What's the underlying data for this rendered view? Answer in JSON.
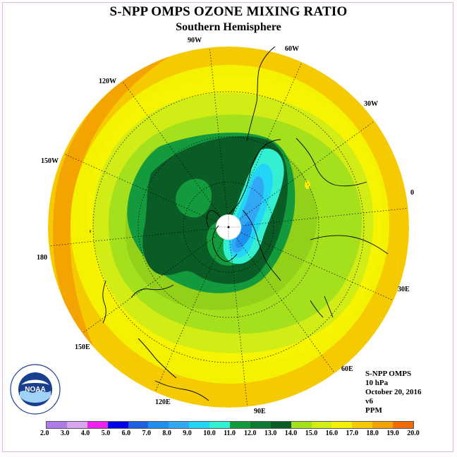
{
  "title": "S-NPP OMPS OZONE MIXING RATIO",
  "subtitle": "Southern Hemisphere",
  "meridian_labels": [
    "90W",
    "60W",
    "30W",
    "0",
    "30E",
    "60E",
    "90E",
    "120E",
    "150E",
    "180",
    "150W",
    "120W"
  ],
  "logo_text": "NOAA",
  "info": {
    "instrument": "S-NPP OMPS",
    "level": "10 hPa",
    "date": "October 20, 2016",
    "version": "v6",
    "units": "PPM"
  },
  "colorbar": {
    "ticks": [
      "2.0",
      "3.0",
      "4.0",
      "5.0",
      "6.0",
      "7.0",
      "8.0",
      "9.0",
      "10.0",
      "11.0",
      "12.0",
      "13.0",
      "14.0",
      "15.0",
      "16.0",
      "17.0",
      "18.0",
      "19.0",
      "20.0"
    ],
    "colors": [
      "#b07ae8",
      "#d6a4f0",
      "#ee22ee",
      "#0000e6",
      "#1e5fe0",
      "#2090ee",
      "#32a8f4",
      "#22d4f6",
      "#33f0d2",
      "#139a3c",
      "#0d7a32",
      "#0a5c26",
      "#a4e01c",
      "#d2ec16",
      "#f4f200",
      "#f6ca00",
      "#f4a400",
      "#f06c00",
      "#e80808",
      "#8a5a3a"
    ]
  }
}
